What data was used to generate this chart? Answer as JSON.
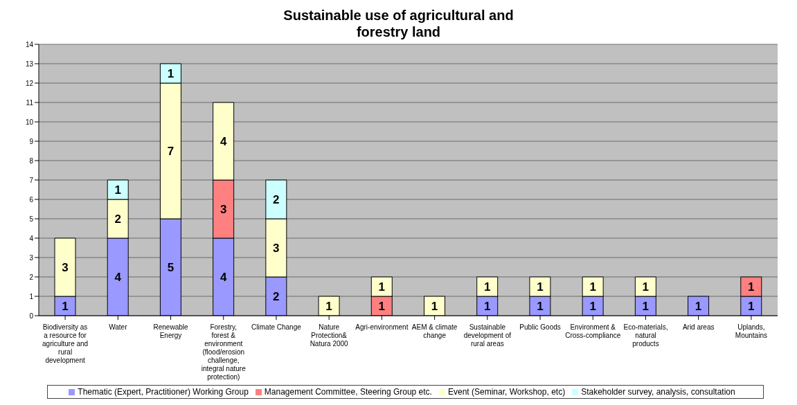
{
  "chart_data": {
    "type": "bar",
    "title": "Sustainable use of agricultural and forestry land",
    "stacked": true,
    "categories": [
      "Biodiversity as a resource for agriculture and rural development",
      "Water",
      "Renewable Energy",
      "Forestry, forest & environment (flood/erosion challenge, integral nature protection)",
      "Climate Change",
      "Nature Protection& Natura 2000",
      "Agri-environment",
      "AEM & climate change",
      "Sustainable development of rural areas",
      "Public Goods",
      "Environment & Cross-compliance",
      "Eco-materials, natural products",
      "Arid areas",
      "Uplands, Mountains"
    ],
    "series": [
      {
        "name": "Thematic (Expert, Practitioner) Working Group",
        "color": "#9999ff",
        "values": [
          1,
          4,
          5,
          4,
          2,
          null,
          null,
          null,
          1,
          1,
          1,
          1,
          1,
          1
        ]
      },
      {
        "name": "Management Committee, Steering Group etc.",
        "color": "#ff8080",
        "values": [
          null,
          null,
          null,
          3,
          null,
          null,
          1,
          null,
          null,
          null,
          null,
          null,
          null,
          1
        ]
      },
      {
        "name": "Event (Seminar, Workshop, etc)",
        "color": "#ffffcc",
        "values": [
          3,
          2,
          7,
          4,
          3,
          1,
          1,
          1,
          1,
          1,
          1,
          1,
          null,
          null
        ]
      },
      {
        "name": "Stakeholder survey, analysis, consultation",
        "color": "#ccffff",
        "values": [
          null,
          1,
          1,
          null,
          2,
          null,
          null,
          null,
          null,
          null,
          null,
          null,
          null,
          null
        ]
      }
    ],
    "ylim": [
      0,
      14
    ],
    "yticks": [
      0,
      1,
      2,
      3,
      4,
      5,
      6,
      7,
      8,
      9,
      10,
      11,
      12,
      13,
      14
    ],
    "grid": "y",
    "data_labels": true,
    "legend": "bottom"
  }
}
